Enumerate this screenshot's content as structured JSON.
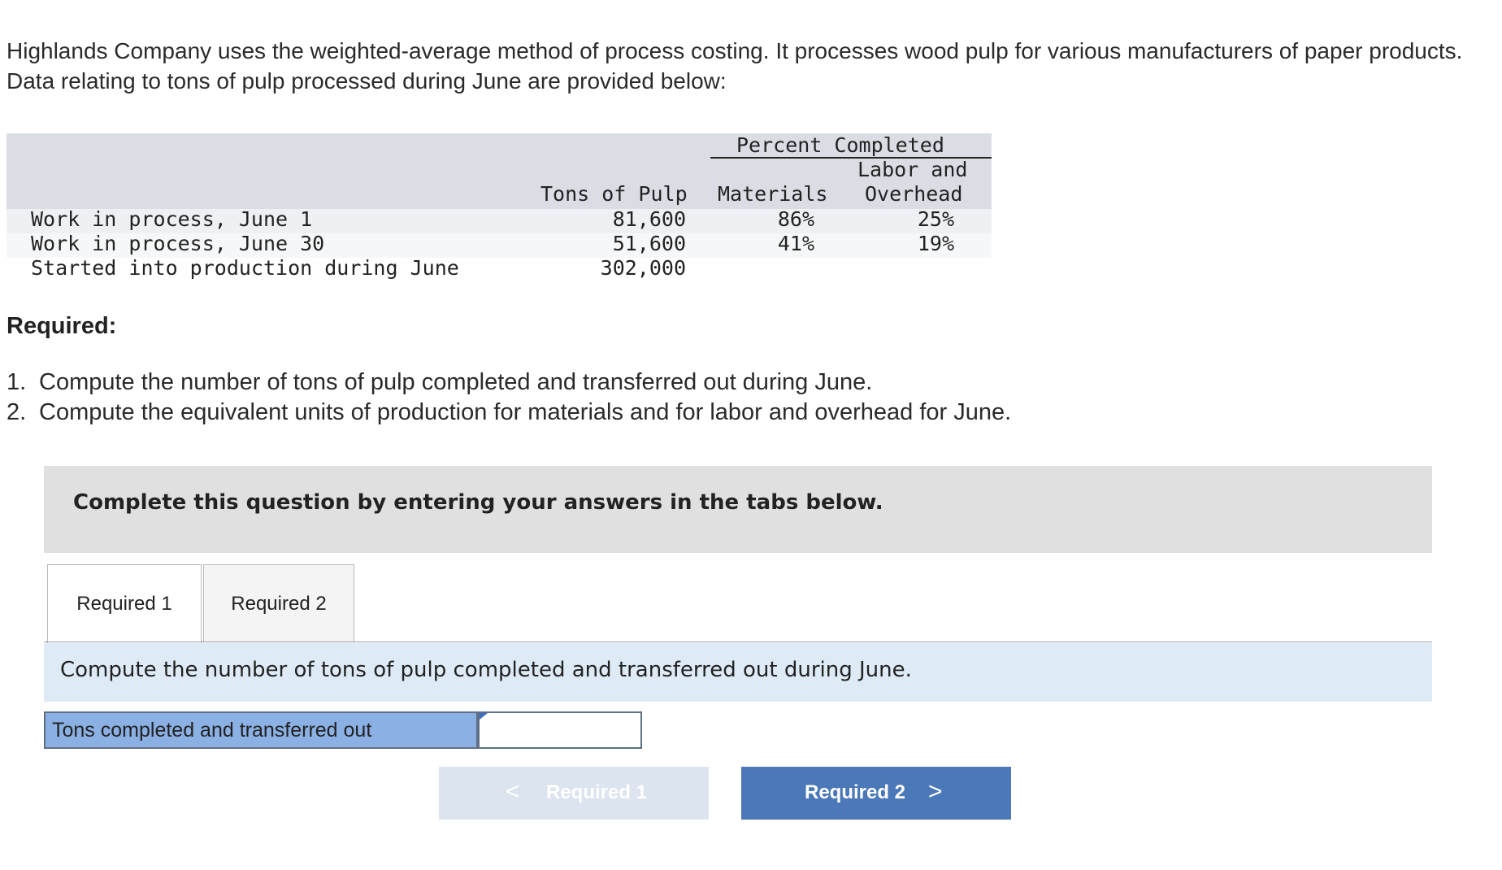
{
  "intro_text": "Highlands Company uses the weighted-average method of process costing. It processes wood pulp for various manufacturers of paper products. Data relating to tons of pulp processed during June are provided below:",
  "table": {
    "header_group": "Percent Completed",
    "col_tons": "Tons of Pulp",
    "col_materials": "Materials",
    "col_labor_line1": "Labor and",
    "col_labor_line2": "Overhead",
    "rows": [
      {
        "label": "Work in process, June 1",
        "tons": "81,600",
        "materials": "86%",
        "labor": "25%"
      },
      {
        "label": "Work in process, June 30",
        "tons": "51,600",
        "materials": "41%",
        "labor": "19%"
      },
      {
        "label": "Started into production during June",
        "tons": "302,000",
        "materials": "",
        "labor": ""
      }
    ]
  },
  "required_heading": "Required:",
  "requirements": [
    {
      "num": "1.",
      "text": "Compute the number of tons of pulp completed and transferred out during June."
    },
    {
      "num": "2.",
      "text": "Compute the equivalent units of production for materials and for labor and overhead for June."
    }
  ],
  "instruction": "Complete this question by entering your answers in the tabs below.",
  "tabs": [
    {
      "label": "Required 1",
      "active": true
    },
    {
      "label": "Required 2",
      "active": false
    }
  ],
  "subquestion": "Compute the number of tons of pulp completed and transferred out during June.",
  "answer": {
    "label": "Tons completed and transferred out",
    "value": ""
  },
  "nav": {
    "prev_label": "Required 1",
    "next_label": "Required 2",
    "prev_chevron": "<",
    "next_chevron": ">"
  },
  "colors": {
    "header_band": "#dadde3",
    "answer_label_bg": "#8ab0e4",
    "subquestion_bg": "#deebf7",
    "next_button": "#4a78b8",
    "prev_button": "#dbe4ef"
  }
}
